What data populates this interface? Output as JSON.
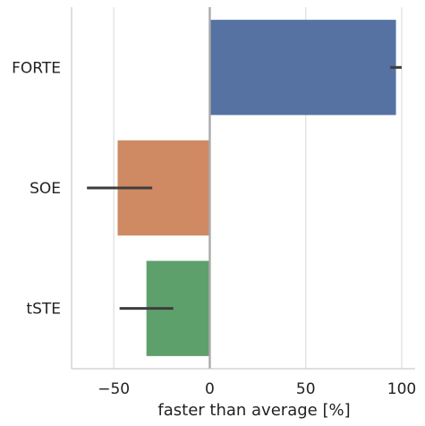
{
  "chart_data": {
    "type": "bar",
    "orientation": "horizontal",
    "categories": [
      "FORTE",
      "SOE",
      "tSTE"
    ],
    "values": [
      97,
      -48,
      -33
    ],
    "error_intervals": [
      [
        94,
        100
      ],
      [
        -64,
        -30
      ],
      [
        -47,
        -19
      ]
    ],
    "colors": [
      "#5572a3",
      "#cf8a63",
      "#5ea06c"
    ],
    "xlabel": "faster than average [%]",
    "ylabel": "",
    "xlim": [
      -72,
      107
    ],
    "xticks": [
      -50,
      0,
      50,
      100
    ],
    "xtick_labels": [
      "−50",
      "0",
      "50",
      "100"
    ],
    "grid": "vertical",
    "reference_line": 0,
    "legend": "none"
  }
}
